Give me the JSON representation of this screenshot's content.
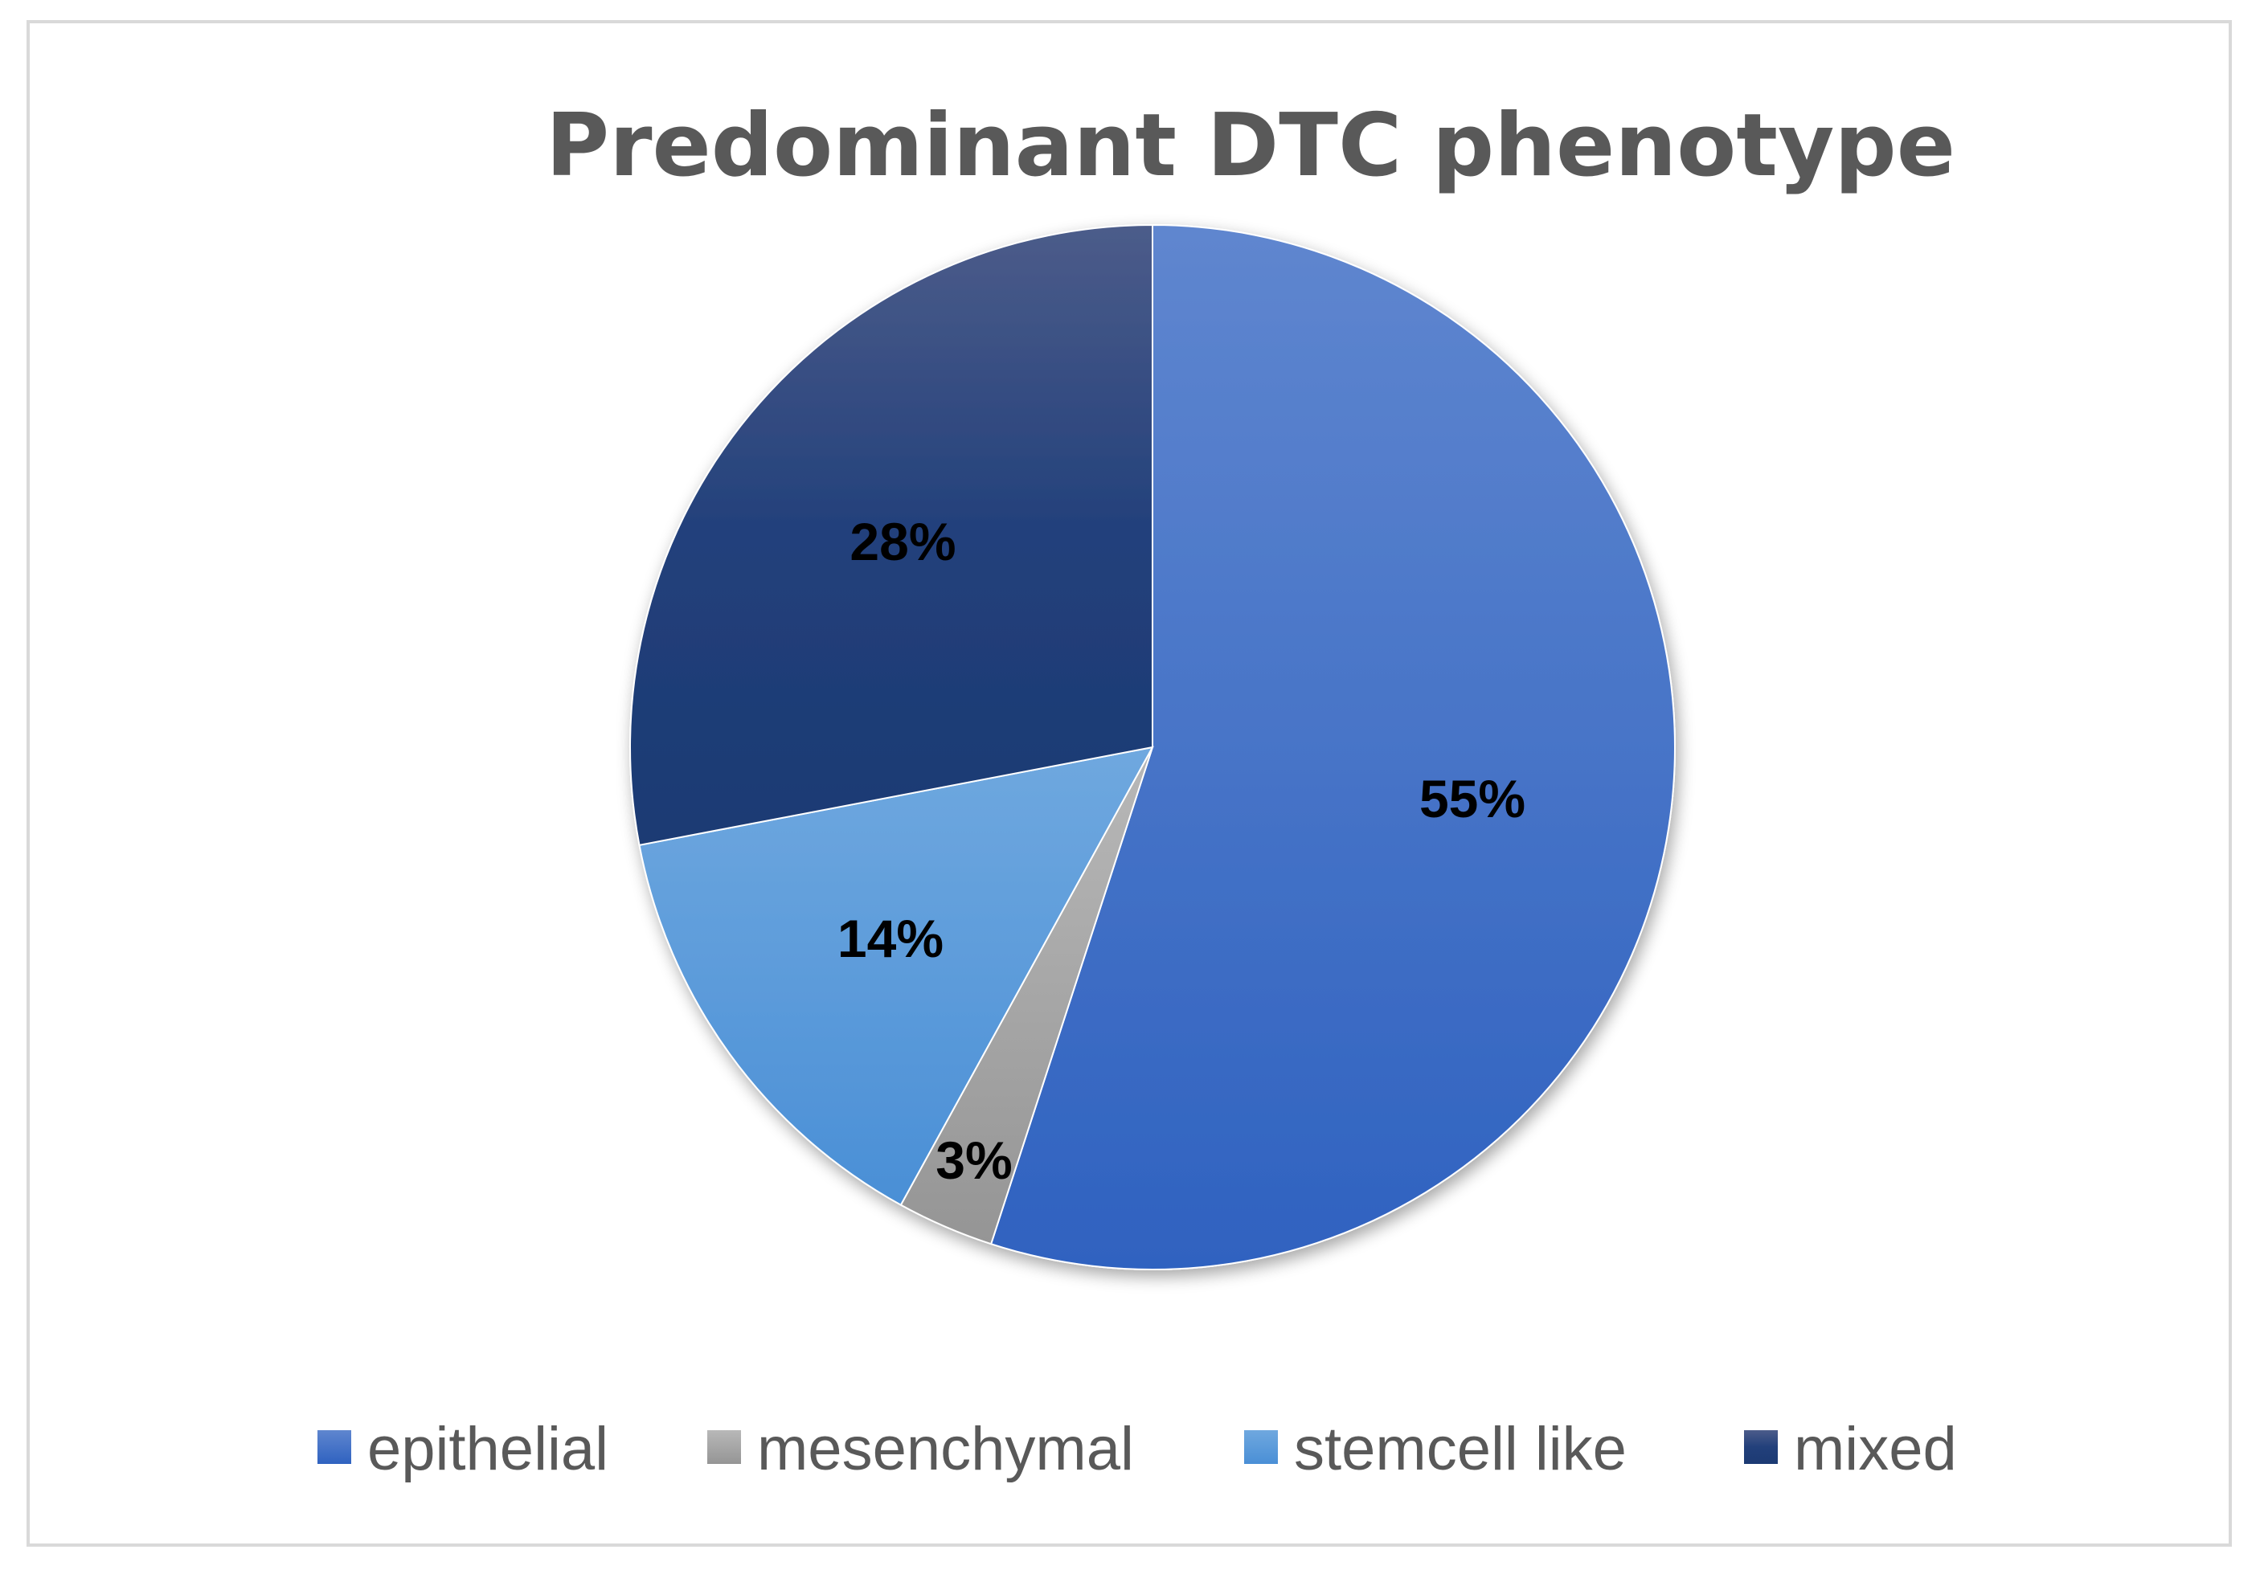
{
  "chart_data": {
    "type": "pie",
    "title": "Predominant DTC phenotype",
    "categories": [
      "epithelial",
      "mesenchymal",
      "stemcell like",
      "mixed"
    ],
    "values": [
      55,
      3,
      14,
      28
    ],
    "labels": [
      "55%",
      "3%",
      "14%",
      "28%"
    ],
    "colors": [
      "#3a6cc8",
      "#a5a5a5",
      "#5a9bdb",
      "#1f3c73"
    ],
    "legend_position": "bottom",
    "start_angle": "12 o'clock",
    "direction": "clockwise"
  }
}
